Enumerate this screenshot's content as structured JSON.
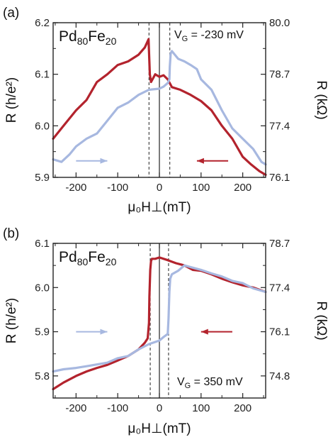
{
  "colors": {
    "red": "#b3232d",
    "blue": "#a7b8e0",
    "axis": "#222222"
  },
  "chart_data": [
    {
      "type": "line",
      "panel_label": "(a)",
      "material_main": "Pd",
      "material_sub1": "80",
      "material_mid": "Fe",
      "material_sub2": "20",
      "gate_main": "V",
      "gate_sub": "G",
      "gate_value": " = -230 mV",
      "xlabel": "μ₀H⊥(mT)",
      "ylabel_left": "R (h/e²)",
      "ylabel_right": "R (kΩ)",
      "xlim": [
        -255,
        255
      ],
      "ylim": [
        5.9,
        6.2
      ],
      "xticks": [
        -200,
        -100,
        0,
        100,
        200
      ],
      "yticks": [
        5.9,
        6.0,
        6.1,
        6.2
      ],
      "yticks_right": [
        "76.1",
        "77.4",
        "78.7",
        "80.0"
      ],
      "switch_fields": [
        -25,
        25
      ],
      "arrows": [
        {
          "color": "blue",
          "x_from": -200,
          "x_to": -125,
          "y": 5.932
        },
        {
          "color": "red",
          "x_from": 165,
          "x_to": 90,
          "y": 5.932
        }
      ],
      "series": [
        {
          "color": "red",
          "x": [
            -255,
            -230,
            -200,
            -175,
            -150,
            -125,
            -100,
            -75,
            -50,
            -35,
            -26,
            -25,
            -23,
            -20,
            -10,
            0,
            10,
            20,
            30,
            50,
            75,
            100,
            125,
            150,
            175,
            200,
            220,
            240,
            255
          ],
          "y": [
            5.975,
            6.0,
            6.03,
            6.05,
            6.085,
            6.1,
            6.118,
            6.125,
            6.138,
            6.152,
            6.168,
            6.145,
            6.1,
            6.085,
            6.1,
            6.095,
            6.098,
            6.09,
            6.075,
            6.07,
            6.06,
            6.048,
            6.03,
            6.0,
            5.975,
            5.94,
            5.925,
            5.912,
            5.905
          ]
        },
        {
          "color": "blue",
          "x": [
            -255,
            -235,
            -215,
            -200,
            -175,
            -150,
            -125,
            -100,
            -75,
            -50,
            -25,
            0,
            10,
            20,
            24,
            25,
            27,
            30,
            45,
            60,
            75,
            90,
            100,
            125,
            150,
            175,
            200,
            225,
            245,
            255
          ],
          "y": [
            5.935,
            5.93,
            5.945,
            5.96,
            5.975,
            5.985,
            6.01,
            6.035,
            6.045,
            6.06,
            6.07,
            6.072,
            6.076,
            6.083,
            6.09,
            6.115,
            6.14,
            6.145,
            6.13,
            6.125,
            6.118,
            6.11,
            6.09,
            6.07,
            6.03,
            5.995,
            5.975,
            5.955,
            5.93,
            5.925
          ]
        }
      ]
    },
    {
      "type": "line",
      "panel_label": "(b)",
      "material_main": "Pd",
      "material_sub1": "80",
      "material_mid": "Fe",
      "material_sub2": "20",
      "gate_main": "V",
      "gate_sub": "G",
      "gate_value": " = 350 mV",
      "xlabel": "μ₀H⊥(mT)",
      "ylabel_left": "R (h/e²)",
      "ylabel_right": "R (kΩ)",
      "xlim": [
        -255,
        255
      ],
      "ylim": [
        5.75,
        6.1
      ],
      "xticks": [
        -200,
        -100,
        0,
        100,
        200
      ],
      "yticks": [
        5.8,
        5.9,
        6.0,
        6.1
      ],
      "yticks_right": [
        "74.8",
        "76.1",
        "77.4",
        "78.7"
      ],
      "switch_fields": [
        -22,
        22
      ],
      "arrows": [
        {
          "color": "blue",
          "x_from": -200,
          "x_to": -125,
          "y": 5.9
        },
        {
          "color": "red",
          "x_from": 175,
          "x_to": 100,
          "y": 5.9
        }
      ],
      "series": [
        {
          "color": "red",
          "x": [
            -255,
            -230,
            -200,
            -175,
            -150,
            -125,
            -100,
            -75,
            -50,
            -35,
            -28,
            -25,
            -24,
            -22,
            -20,
            -18,
            -10,
            0,
            20,
            40,
            60,
            80,
            100,
            125,
            150,
            175,
            200,
            225,
            255
          ],
          "y": [
            5.77,
            5.785,
            5.8,
            5.81,
            5.818,
            5.825,
            5.835,
            5.845,
            5.86,
            5.875,
            5.885,
            5.92,
            5.98,
            6.04,
            6.06,
            6.065,
            6.065,
            6.068,
            6.062,
            6.055,
            6.05,
            6.04,
            6.038,
            6.03,
            6.02,
            6.012,
            6.005,
            6.0,
            5.99
          ]
        },
        {
          "color": "blue",
          "x": [
            -255,
            -230,
            -200,
            -175,
            -150,
            -125,
            -100,
            -75,
            -50,
            -25,
            0,
            10,
            20,
            22,
            24,
            26,
            30,
            45,
            60,
            80,
            100,
            125,
            150,
            175,
            200,
            225,
            255
          ],
          "y": [
            5.81,
            5.815,
            5.818,
            5.822,
            5.826,
            5.83,
            5.84,
            5.845,
            5.86,
            5.872,
            5.88,
            5.888,
            5.895,
            5.93,
            5.99,
            6.02,
            6.03,
            6.038,
            6.05,
            6.045,
            6.04,
            6.032,
            6.025,
            6.015,
            6.01,
            5.998,
            5.99
          ]
        }
      ]
    }
  ]
}
